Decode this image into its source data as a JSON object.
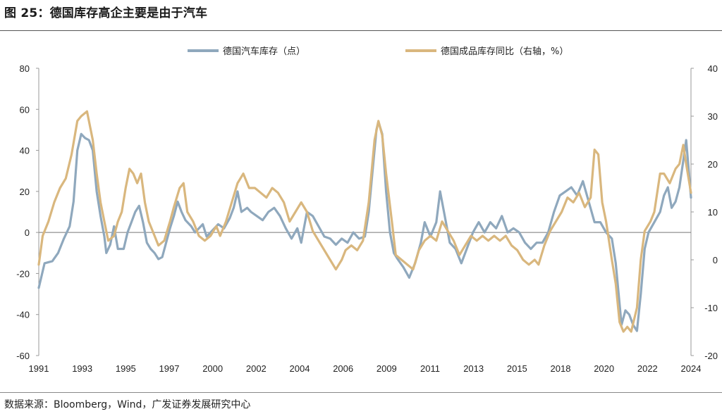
{
  "title": "图 25：德国库存高企主要是由于汽车",
  "source": "数据来源：Bloomberg，Wind，广发证券发展研究中心",
  "chart_data": {
    "type": "line",
    "legend_position": "top-center",
    "grid": false,
    "y_left": {
      "min": -60,
      "max": 80,
      "ticks": [
        80,
        60,
        40,
        20,
        0,
        -20,
        -40,
        -60
      ]
    },
    "y_right": {
      "min": -20,
      "max": 40,
      "ticks": [
        40,
        30,
        20,
        10,
        0,
        -10,
        -20
      ]
    },
    "x_labels": [
      "1991",
      "1993",
      "1995",
      "1997",
      "2000",
      "2002",
      "2004",
      "2006",
      "2009",
      "2011",
      "2013",
      "2015",
      "2018",
      "2020",
      "2022",
      "2024"
    ],
    "x_range": [
      1991.0,
      2024.8
    ],
    "series": [
      {
        "name": "德国汽车库存（点）",
        "axis": "left",
        "color": "#8fa8bd",
        "points": [
          [
            1991.0,
            -27
          ],
          [
            1991.3,
            -15
          ],
          [
            1991.7,
            -14
          ],
          [
            1992.0,
            -10
          ],
          [
            1992.3,
            -3
          ],
          [
            1992.6,
            3
          ],
          [
            1992.8,
            15
          ],
          [
            1993.0,
            40
          ],
          [
            1993.2,
            48
          ],
          [
            1993.4,
            46
          ],
          [
            1993.6,
            45
          ],
          [
            1993.8,
            40
          ],
          [
            1994.0,
            20
          ],
          [
            1994.2,
            8
          ],
          [
            1994.4,
            -2
          ],
          [
            1994.5,
            -10
          ],
          [
            1994.7,
            -6
          ],
          [
            1994.9,
            3
          ],
          [
            1995.1,
            -8
          ],
          [
            1995.4,
            -8
          ],
          [
            1995.6,
            0
          ],
          [
            1995.8,
            5
          ],
          [
            1996.0,
            10
          ],
          [
            1996.2,
            13
          ],
          [
            1996.4,
            5
          ],
          [
            1996.6,
            -5
          ],
          [
            1996.8,
            -8
          ],
          [
            1997.0,
            -10
          ],
          [
            1997.2,
            -13
          ],
          [
            1997.4,
            -12
          ],
          [
            1997.6,
            -5
          ],
          [
            1997.8,
            2
          ],
          [
            1998.0,
            8
          ],
          [
            1998.2,
            15
          ],
          [
            1998.4,
            10
          ],
          [
            1998.6,
            6
          ],
          [
            1998.9,
            3
          ],
          [
            1999.1,
            0
          ],
          [
            1999.3,
            2
          ],
          [
            1999.5,
            4
          ],
          [
            1999.7,
            -2
          ],
          [
            2000.0,
            1
          ],
          [
            2000.3,
            4
          ],
          [
            2000.6,
            2
          ],
          [
            2000.9,
            7
          ],
          [
            2001.1,
            12
          ],
          [
            2001.3,
            20
          ],
          [
            2001.5,
            10
          ],
          [
            2001.8,
            12
          ],
          [
            2002.0,
            10
          ],
          [
            2002.3,
            8
          ],
          [
            2002.6,
            6
          ],
          [
            2002.9,
            10
          ],
          [
            2003.2,
            12
          ],
          [
            2003.5,
            8
          ],
          [
            2003.8,
            2
          ],
          [
            2004.1,
            -3
          ],
          [
            2004.4,
            2
          ],
          [
            2004.6,
            -5
          ],
          [
            2004.9,
            10
          ],
          [
            2005.2,
            8
          ],
          [
            2005.5,
            3
          ],
          [
            2005.8,
            -2
          ],
          [
            2006.1,
            -3
          ],
          [
            2006.4,
            -6
          ],
          [
            2006.7,
            -3
          ],
          [
            2007.0,
            -5
          ],
          [
            2007.3,
            0
          ],
          [
            2007.6,
            -3
          ],
          [
            2007.9,
            -2
          ],
          [
            2008.1,
            10
          ],
          [
            2008.3,
            30
          ],
          [
            2008.5,
            50
          ],
          [
            2008.6,
            54
          ],
          [
            2008.8,
            48
          ],
          [
            2009.0,
            20
          ],
          [
            2009.2,
            0
          ],
          [
            2009.4,
            -10
          ],
          [
            2009.6,
            -13
          ],
          [
            2009.9,
            -17
          ],
          [
            2010.2,
            -22
          ],
          [
            2010.5,
            -15
          ],
          [
            2010.8,
            -5
          ],
          [
            2011.0,
            5
          ],
          [
            2011.3,
            -2
          ],
          [
            2011.6,
            5
          ],
          [
            2011.8,
            20
          ],
          [
            2012.0,
            10
          ],
          [
            2012.3,
            -5
          ],
          [
            2012.6,
            -8
          ],
          [
            2012.9,
            -15
          ],
          [
            2013.1,
            -10
          ],
          [
            2013.3,
            -5
          ],
          [
            2013.5,
            0
          ],
          [
            2013.8,
            5
          ],
          [
            2014.1,
            0
          ],
          [
            2014.4,
            5
          ],
          [
            2014.7,
            2
          ],
          [
            2015.0,
            8
          ],
          [
            2015.3,
            0
          ],
          [
            2015.6,
            2
          ],
          [
            2015.9,
            0
          ],
          [
            2016.2,
            -5
          ],
          [
            2016.5,
            -8
          ],
          [
            2016.8,
            -5
          ],
          [
            2017.1,
            -5
          ],
          [
            2017.4,
            0
          ],
          [
            2017.7,
            10
          ],
          [
            2018.0,
            18
          ],
          [
            2018.3,
            20
          ],
          [
            2018.6,
            22
          ],
          [
            2018.9,
            18
          ],
          [
            2019.2,
            25
          ],
          [
            2019.5,
            15
          ],
          [
            2019.8,
            5
          ],
          [
            2020.1,
            5
          ],
          [
            2020.4,
            0
          ],
          [
            2020.7,
            -3
          ],
          [
            2020.9,
            -15
          ],
          [
            2021.2,
            -45
          ],
          [
            2021.4,
            -38
          ],
          [
            2021.6,
            -40
          ],
          [
            2021.8,
            -45
          ],
          [
            2022.0,
            -48
          ],
          [
            2022.2,
            -30
          ],
          [
            2022.4,
            -8
          ],
          [
            2022.6,
            0
          ],
          [
            2022.9,
            5
          ],
          [
            2023.2,
            10
          ],
          [
            2023.4,
            18
          ],
          [
            2023.6,
            22
          ],
          [
            2023.8,
            12
          ],
          [
            2024.0,
            15
          ],
          [
            2024.2,
            22
          ],
          [
            2024.4,
            35
          ],
          [
            2024.55,
            45
          ],
          [
            2024.8,
            17
          ]
        ]
      },
      {
        "name": "德国成品库存同比（右轴，%）",
        "axis": "right",
        "color": "#d9b77e",
        "points": [
          [
            1991.0,
            -1
          ],
          [
            1991.2,
            5
          ],
          [
            1991.5,
            8
          ],
          [
            1991.8,
            12
          ],
          [
            1992.1,
            15
          ],
          [
            1992.4,
            17
          ],
          [
            1992.7,
            22
          ],
          [
            1993.0,
            29
          ],
          [
            1993.2,
            30
          ],
          [
            1993.5,
            31
          ],
          [
            1993.8,
            25
          ],
          [
            1994.0,
            18
          ],
          [
            1994.2,
            12
          ],
          [
            1994.4,
            8
          ],
          [
            1994.6,
            4
          ],
          [
            1994.9,
            5
          ],
          [
            1995.1,
            8
          ],
          [
            1995.3,
            10
          ],
          [
            1995.5,
            15
          ],
          [
            1995.7,
            19
          ],
          [
            1995.9,
            18
          ],
          [
            1996.1,
            16
          ],
          [
            1996.3,
            18
          ],
          [
            1996.5,
            12
          ],
          [
            1996.7,
            8
          ],
          [
            1996.9,
            6
          ],
          [
            1997.2,
            3
          ],
          [
            1997.5,
            4
          ],
          [
            1997.8,
            8
          ],
          [
            1998.0,
            11
          ],
          [
            1998.3,
            15
          ],
          [
            1998.5,
            16
          ],
          [
            1998.7,
            10
          ],
          [
            1999.0,
            8
          ],
          [
            1999.3,
            5
          ],
          [
            1999.6,
            4
          ],
          [
            1999.9,
            5
          ],
          [
            2000.2,
            7
          ],
          [
            2000.4,
            5
          ],
          [
            2000.7,
            8
          ],
          [
            2001.0,
            12
          ],
          [
            2001.3,
            16
          ],
          [
            2001.6,
            18
          ],
          [
            2001.9,
            15
          ],
          [
            2002.2,
            15
          ],
          [
            2002.5,
            14
          ],
          [
            2002.8,
            13
          ],
          [
            2003.1,
            15
          ],
          [
            2003.4,
            14
          ],
          [
            2003.7,
            12
          ],
          [
            2004.0,
            8
          ],
          [
            2004.3,
            10
          ],
          [
            2004.6,
            12
          ],
          [
            2004.9,
            10
          ],
          [
            2005.2,
            6
          ],
          [
            2005.5,
            4
          ],
          [
            2005.8,
            2
          ],
          [
            2006.1,
            0
          ],
          [
            2006.4,
            -2
          ],
          [
            2006.7,
            0
          ],
          [
            2006.9,
            2
          ],
          [
            2007.2,
            3
          ],
          [
            2007.5,
            2
          ],
          [
            2007.8,
            4
          ],
          [
            2008.1,
            12
          ],
          [
            2008.4,
            25
          ],
          [
            2008.6,
            29
          ],
          [
            2008.8,
            26
          ],
          [
            2009.0,
            18
          ],
          [
            2009.3,
            8
          ],
          [
            2009.5,
            1
          ],
          [
            2009.8,
            0
          ],
          [
            2010.1,
            -1
          ],
          [
            2010.4,
            -2
          ],
          [
            2010.7,
            2
          ],
          [
            2011.0,
            4
          ],
          [
            2011.3,
            5
          ],
          [
            2011.6,
            4
          ],
          [
            2011.9,
            8
          ],
          [
            2012.2,
            6
          ],
          [
            2012.5,
            4
          ],
          [
            2012.8,
            1
          ],
          [
            2013.1,
            3
          ],
          [
            2013.4,
            5
          ],
          [
            2013.7,
            4
          ],
          [
            2014.0,
            5
          ],
          [
            2014.3,
            4
          ],
          [
            2014.6,
            5
          ],
          [
            2014.9,
            4
          ],
          [
            2015.2,
            5
          ],
          [
            2015.5,
            3
          ],
          [
            2015.8,
            2
          ],
          [
            2016.1,
            0
          ],
          [
            2016.4,
            -1
          ],
          [
            2016.7,
            0
          ],
          [
            2016.9,
            -1
          ],
          [
            2017.2,
            3
          ],
          [
            2017.5,
            6
          ],
          [
            2017.8,
            8
          ],
          [
            2018.1,
            10
          ],
          [
            2018.4,
            13
          ],
          [
            2018.7,
            12
          ],
          [
            2019.0,
            14
          ],
          [
            2019.3,
            11
          ],
          [
            2019.6,
            13
          ],
          [
            2019.8,
            23
          ],
          [
            2020.0,
            22
          ],
          [
            2020.2,
            12
          ],
          [
            2020.4,
            8
          ],
          [
            2020.7,
            0
          ],
          [
            2020.9,
            -5
          ],
          [
            2021.1,
            -13
          ],
          [
            2021.3,
            -15
          ],
          [
            2021.5,
            -14
          ],
          [
            2021.7,
            -15
          ],
          [
            2022.0,
            -10
          ],
          [
            2022.2,
            0
          ],
          [
            2022.4,
            6
          ],
          [
            2022.7,
            8
          ],
          [
            2022.9,
            10
          ],
          [
            2023.2,
            18
          ],
          [
            2023.4,
            18
          ],
          [
            2023.7,
            16
          ],
          [
            2024.0,
            19
          ],
          [
            2024.2,
            20
          ],
          [
            2024.4,
            24
          ],
          [
            2024.55,
            20
          ],
          [
            2024.8,
            14
          ]
        ]
      }
    ]
  }
}
